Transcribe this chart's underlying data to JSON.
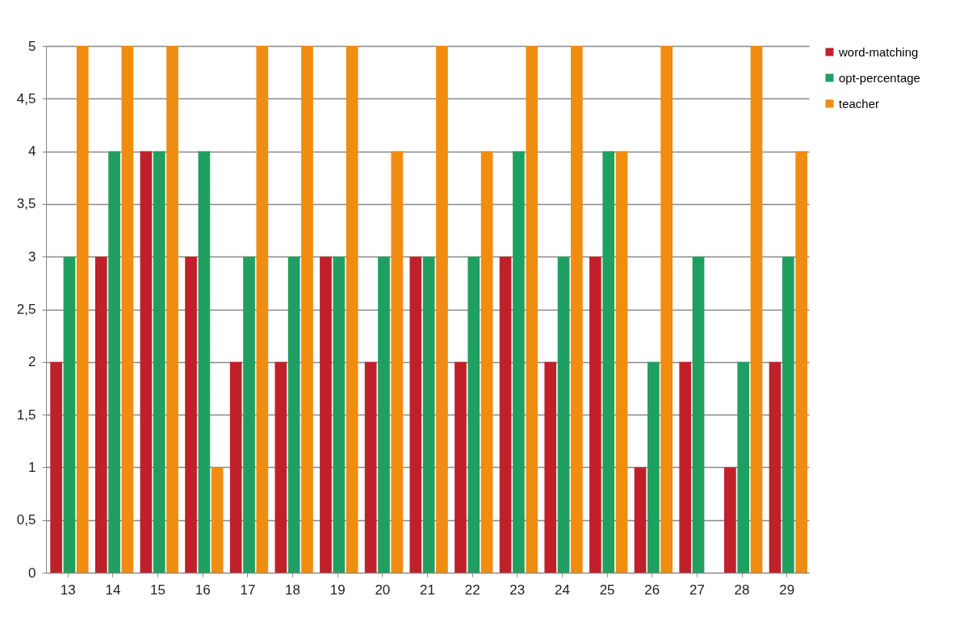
{
  "chart_data": {
    "type": "bar",
    "categories": [
      "13",
      "14",
      "15",
      "16",
      "17",
      "18",
      "19",
      "20",
      "21",
      "22",
      "23",
      "24",
      "25",
      "26",
      "27",
      "28",
      "29"
    ],
    "series": [
      {
        "name": "word-matching",
        "color": "#c0202a",
        "values": [
          2,
          3,
          4,
          3,
          2,
          2,
          3,
          2,
          3,
          2,
          3,
          2,
          3,
          1,
          2,
          1,
          2
        ]
      },
      {
        "name": "opt-percentage",
        "color": "#20a060",
        "values": [
          3,
          4,
          4,
          4,
          3,
          3,
          3,
          3,
          3,
          3,
          4,
          3,
          4,
          2,
          3,
          2,
          3
        ]
      },
      {
        "name": "teacher",
        "color": "#f08c10",
        "values": [
          5,
          5,
          5,
          1,
          5,
          5,
          5,
          4,
          5,
          4,
          5,
          5,
          4,
          5,
          0,
          5,
          4
        ]
      }
    ],
    "ylim": [
      0,
      5
    ],
    "yticks": [
      0,
      {
        "value": 0.5,
        "label": "0,5"
      },
      1,
      {
        "value": 1.5,
        "label": "1,5"
      },
      2,
      {
        "value": 2.5,
        "label": "2,5"
      },
      3,
      {
        "value": 3.5,
        "label": "3,5"
      },
      4,
      {
        "value": 4.5,
        "label": "4,5"
      },
      5
    ],
    "grid": "y",
    "legend": "right"
  }
}
